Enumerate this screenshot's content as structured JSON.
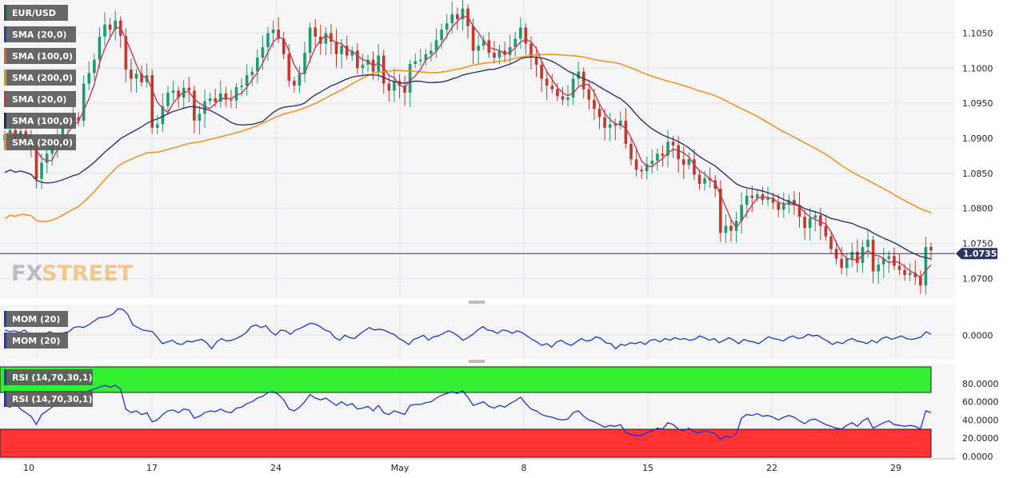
{
  "chart_data": [
    {
      "panel": "price",
      "type": "candlestick",
      "symbol": "EUR/USD",
      "legend": [
        "EUR/USD",
        "SMA (20,0)",
        "SMA (100,0)",
        "SMA (200,0)",
        "SMA (20,0)",
        "SMA (100,0)",
        "SMA (200,0)"
      ],
      "legend_colors": [
        "#1b5e3b",
        "#2244aa",
        "#d2691e",
        "#c8a000",
        "#cc3344",
        "#1f2a5a",
        "#e08a20"
      ],
      "y_ticks": [
        "1.1050",
        "1.1000",
        "1.0950",
        "1.0900",
        "1.0850",
        "1.0800",
        "1.0750",
        "1.0700"
      ],
      "ylim": [
        1.0673,
        1.1095
      ],
      "current_price": 1.07355,
      "current_price_label": "1.07355",
      "watermark": "FXSTREET",
      "colors": {
        "up": "#1e9c6e",
        "down": "#c0392b",
        "sma20": "#c23b55",
        "sma100": "#2b3467",
        "sma200": "#f0951f",
        "price_line": "#2b3467"
      },
      "closes": [
        1.0905,
        1.0912,
        1.0898,
        1.091,
        1.0895,
        1.0885,
        1.0842,
        1.0865,
        1.0878,
        1.089,
        1.0902,
        1.0915,
        1.0925,
        1.093,
        1.0925,
        1.0978,
        1.0993,
        1.1012,
        1.1045,
        1.1062,
        1.1055,
        1.1068,
        1.1046,
        1.0998,
        1.0985,
        1.0992,
        1.098,
        1.099,
        1.0915,
        1.092,
        1.0946,
        1.0965,
        1.0968,
        1.0958,
        1.0972,
        1.0968,
        1.0925,
        1.0935,
        1.0953,
        1.0957,
        1.0952,
        1.0964,
        1.0955,
        1.0954,
        1.0973,
        1.0975,
        1.099,
        1.0995,
        1.1015,
        1.103,
        1.105,
        1.1055,
        1.1042,
        1.102,
        1.0982,
        1.0975,
        1.0992,
        1.1022,
        1.1058,
        1.1045,
        1.1035,
        1.105,
        1.1038,
        1.102,
        1.1032,
        1.1018,
        1.1025,
        1.1,
        1.1005,
        1.1012,
        1.0995,
        1.1018,
        1.0978,
        1.0968,
        1.0982,
        1.0975,
        1.0965,
        1.1006,
        1.101,
        1.1012,
        1.102,
        1.1025,
        1.104,
        1.1055,
        1.1064,
        1.1077,
        1.107,
        1.1085,
        1.106,
        1.1025,
        1.1032,
        1.104,
        1.1022,
        1.1015,
        1.1025,
        1.1019,
        1.103,
        1.1042,
        1.1058,
        1.1035,
        1.1015,
        1.1005,
        1.0985,
        1.0975,
        1.097,
        1.096,
        1.0955,
        1.0958,
        1.0985,
        1.0995,
        1.097,
        1.0955,
        1.0942,
        1.093,
        1.0915,
        1.092,
        1.0918,
        1.0925,
        1.0892,
        1.087,
        1.0855,
        1.0853,
        1.0863,
        1.0868,
        1.0878,
        1.0875,
        1.0895,
        1.089,
        1.087,
        1.0862,
        1.087,
        1.0848,
        1.0835,
        1.0843,
        1.084,
        1.0828,
        1.0765,
        1.0775,
        1.0768,
        1.0782,
        1.0805,
        1.0818,
        1.0815,
        1.082,
        1.0812,
        1.0815,
        1.0808,
        1.0798,
        1.0806,
        1.0812,
        1.0805,
        1.0788,
        1.0772,
        1.0786,
        1.079,
        1.0775,
        1.076,
        1.0742,
        1.0728,
        1.0715,
        1.0728,
        1.0738,
        1.0722,
        1.0745,
        1.0755,
        1.071,
        1.072,
        1.0728,
        1.0732,
        1.0718,
        1.0712,
        1.0705,
        1.0708,
        1.0702,
        1.069,
        1.0745,
        1.074
      ]
    },
    {
      "panel": "momentum",
      "type": "line",
      "legend": [
        "MOM (20)",
        "MOM (20)"
      ],
      "y_ticks": [
        "0.0000"
      ],
      "color": "#2233cc",
      "ylim": [
        -1.3,
        1.7
      ],
      "values": [
        0.3,
        0.2,
        0.25,
        0.15,
        0.3,
        0.05,
        -0.1,
        0.05,
        0.0,
        0.2,
        0.1,
        0.05,
        0.15,
        0.2,
        0.45,
        0.5,
        0.45,
        0.6,
        0.8,
        1.0,
        1.05,
        1.1,
        1.25,
        1.55,
        1.5,
        1.2,
        0.6,
        0.45,
        0.3,
        0.25,
        0.2,
        -0.15,
        -0.5,
        -0.4,
        -0.3,
        -0.5,
        -0.55,
        -0.35,
        -0.4,
        -0.3,
        -0.25,
        -0.45,
        -0.8,
        -0.4,
        -0.2,
        -0.35,
        -0.3,
        -0.2,
        -0.05,
        0.15,
        0.5,
        0.6,
        0.45,
        0.55,
        0.2,
        0.0,
        0.3,
        0.25,
        0.05,
        0.3,
        0.4,
        0.55,
        0.7,
        0.65,
        0.5,
        0.3,
        0.2,
        -0.15,
        -0.3,
        0.0,
        -0.15,
        -0.2,
        0.05,
        0.25,
        0.45,
        0.3,
        0.35,
        0.3,
        0.15,
        0.05,
        -0.2,
        -0.35,
        -0.55,
        -0.25,
        -0.15,
        0.0,
        -0.3,
        -0.1,
        -0.05,
        0.1,
        0.25,
        0.15,
        -0.05,
        -0.3,
        -0.15,
        0.05,
        0.3,
        0.5,
        0.3,
        0.25,
        0.1,
        0.3,
        0.25,
        0.1,
        0.25,
        0.15,
        -0.05,
        -0.25,
        -0.4,
        -0.6,
        -0.5,
        -0.7,
        -0.4,
        -0.3,
        -0.5,
        -0.6,
        -0.4,
        -0.2,
        -0.35,
        -0.3,
        -0.1,
        -0.2,
        -0.45,
        -0.5,
        -0.8,
        -0.55,
        -0.6,
        -0.45,
        -0.5,
        -0.4,
        -0.55,
        -0.3,
        -0.25,
        -0.4,
        -0.2,
        -0.3,
        -0.15,
        -0.25,
        -0.2,
        -0.3,
        -0.25,
        -0.05,
        -0.15,
        -0.3,
        -0.2,
        -0.45,
        -0.3,
        -0.15,
        -0.3,
        -0.5,
        -0.25,
        -0.35,
        -0.4,
        -0.5,
        -0.3,
        -0.1,
        -0.2,
        -0.25,
        -0.35,
        -0.15,
        -0.05,
        -0.2,
        -0.15,
        0.05,
        -0.05,
        0.0,
        -0.2,
        -0.35,
        -0.55,
        -0.4,
        -0.5,
        -0.3,
        -0.2,
        -0.35,
        -0.4,
        -0.5,
        -0.3,
        -0.45,
        -0.2,
        -0.1,
        -0.25,
        -0.15,
        -0.05,
        -0.2,
        -0.25,
        -0.2,
        -0.1,
        0.2,
        0.05
      ]
    },
    {
      "panel": "rsi",
      "type": "line",
      "legend": [
        "RSI (14,70,30,1)",
        "RSI (14,70,30,1)"
      ],
      "y_ticks": [
        "80.0000",
        "60.0000",
        "40.0000",
        "20.0000",
        "0.0000"
      ],
      "ylim": [
        0,
        100
      ],
      "overbought": 70,
      "oversold": 30,
      "colors": {
        "line": "#2233cc",
        "overbought_zone": "#33ee33",
        "oversold_zone": "#ff3333"
      },
      "values": [
        56,
        54,
        58,
        52,
        48,
        44,
        35,
        46,
        50,
        54,
        58,
        62,
        64,
        66,
        64,
        70,
        72,
        74,
        76,
        78,
        76,
        78,
        74,
        52,
        48,
        50,
        46,
        48,
        38,
        40,
        46,
        50,
        51,
        48,
        52,
        51,
        42,
        44,
        48,
        50,
        49,
        52,
        49,
        48,
        53,
        54,
        58,
        60,
        64,
        66,
        70,
        71,
        68,
        62,
        52,
        50,
        54,
        60,
        68,
        64,
        62,
        64,
        60,
        56,
        60,
        56,
        58,
        52,
        53,
        55,
        50,
        56,
        48,
        46,
        50,
        48,
        46,
        56,
        57,
        57,
        59,
        60,
        64,
        67,
        69,
        71,
        69,
        72,
        65,
        56,
        58,
        60,
        55,
        53,
        56,
        54,
        58,
        61,
        65,
        58,
        52,
        50,
        46,
        44,
        43,
        41,
        40,
        41,
        48,
        50,
        44,
        40,
        38,
        35,
        32,
        34,
        33,
        35,
        26,
        24,
        23,
        23,
        26,
        28,
        31,
        30,
        37,
        35,
        30,
        28,
        31,
        27,
        26,
        28,
        27,
        25,
        19,
        22,
        21,
        25,
        42,
        46,
        45,
        47,
        44,
        45,
        43,
        40,
        43,
        45,
        43,
        39,
        36,
        40,
        41,
        38,
        35,
        33,
        31,
        30,
        34,
        37,
        33,
        39,
        42,
        31,
        34,
        37,
        39,
        35,
        34,
        33,
        34,
        33,
        30,
        50,
        48
      ]
    }
  ],
  "x_axis": {
    "labels": [
      "10",
      "17",
      "24",
      "May",
      "8",
      "15",
      "22",
      "29"
    ]
  }
}
